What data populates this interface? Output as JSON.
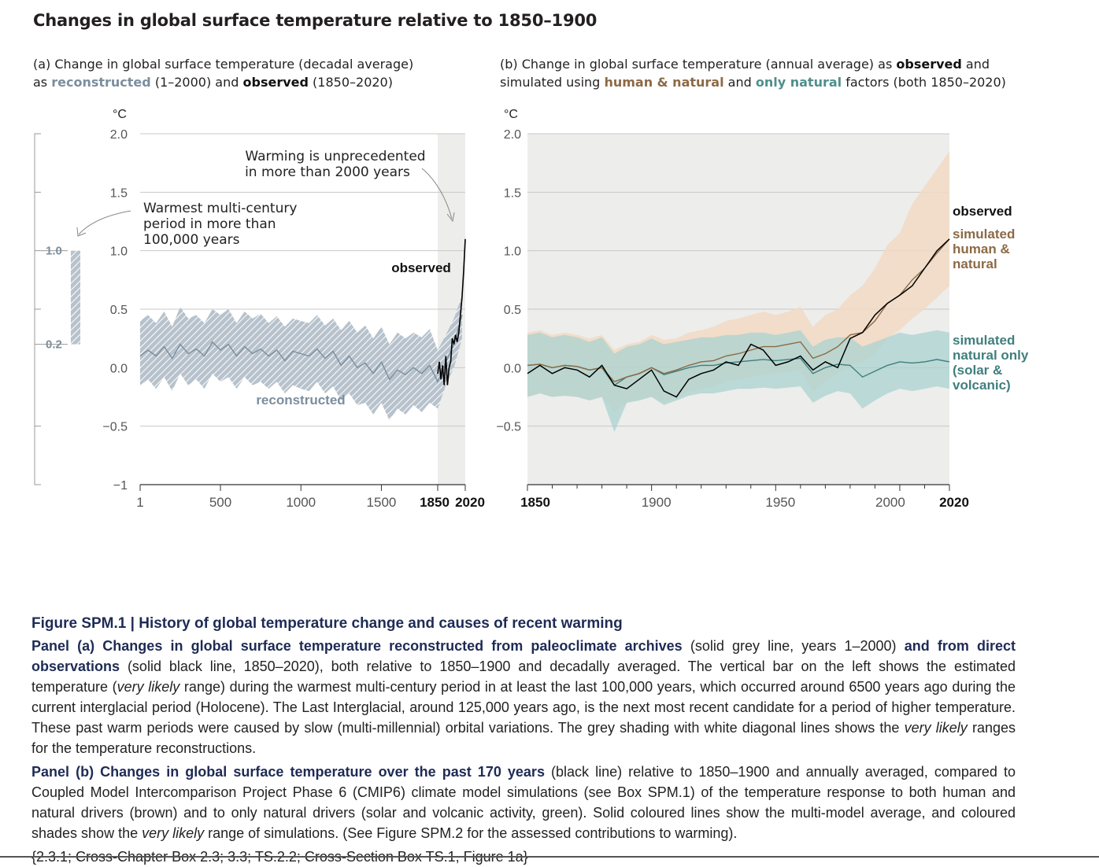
{
  "page": {
    "title": "Changes in global surface temperature relative to 1850–1900"
  },
  "panel_a_subtitle": {
    "line1": "(a) Change in global surface temperature (decadal average)",
    "as": "as",
    "reconstructed": "reconstructed",
    "mid": "(1–2000) and",
    "observed": "observed",
    "end": "(1850–2020)"
  },
  "panel_b_subtitle": {
    "line1_start": "(b) Change in global surface temperature (annual average) as",
    "observed": "observed",
    "and": "and",
    "line2_start": "simulated using",
    "human_natural": "human & natural",
    "and2": "and",
    "only_natural": "only natural",
    "end": "factors (both 1850–2020)"
  },
  "colors": {
    "reconstructed": "#7b8e9e",
    "reconstructed_band": "#b7c2cc",
    "observed": "#000000",
    "human_natural_line": "#8b6a45",
    "human_natural_band": "#f1d9c4",
    "natural_line": "#3f7f7c",
    "natural_band": "#a9d2d0",
    "shade": "#ededeb",
    "grid": "#c8c8c8"
  },
  "chart_data": [
    {
      "type": "line",
      "panel": "a",
      "ylabel": "°C",
      "ylim": [
        -1,
        2
      ],
      "yticks": [
        "2.0",
        "1.5",
        "1.0",
        "0.5",
        "0.0",
        "−0.5",
        "−1"
      ],
      "ytick_values": [
        2.0,
        1.5,
        1.0,
        0.5,
        0.0,
        -0.5,
        -1.0
      ],
      "xticks": [
        "1",
        "500",
        "1000",
        "1500",
        "1850",
        "2020"
      ],
      "xtick_values": [
        1,
        500,
        1000,
        1500,
        1850,
        2020
      ],
      "grid": true,
      "shaded_period": [
        1850,
        2020
      ],
      "series": [
        {
          "name": "reconstructed",
          "x": [
            1,
            50,
            100,
            150,
            200,
            250,
            300,
            350,
            400,
            450,
            500,
            550,
            600,
            650,
            700,
            750,
            800,
            850,
            900,
            950,
            1000,
            1050,
            1100,
            1150,
            1200,
            1250,
            1300,
            1350,
            1400,
            1450,
            1500,
            1550,
            1600,
            1650,
            1700,
            1750,
            1800,
            1850,
            1900,
            1950,
            2000
          ],
          "values": [
            0.1,
            0.15,
            0.1,
            0.18,
            0.08,
            0.2,
            0.12,
            0.16,
            0.1,
            0.22,
            0.15,
            0.2,
            0.1,
            0.18,
            0.12,
            0.16,
            0.1,
            0.15,
            0.06,
            0.14,
            0.12,
            0.1,
            0.16,
            0.08,
            0.14,
            0.02,
            0.1,
            0.0,
            0.04,
            -0.05,
            0.05,
            -0.1,
            -0.02,
            -0.06,
            0.0,
            -0.05,
            0.02,
            -0.12,
            0.05,
            0.2,
            0.45
          ],
          "lower": [
            -0.15,
            -0.1,
            -0.18,
            -0.08,
            -0.2,
            -0.05,
            -0.15,
            -0.1,
            -0.18,
            -0.05,
            -0.12,
            -0.08,
            -0.18,
            -0.08,
            -0.15,
            -0.12,
            -0.18,
            -0.12,
            -0.22,
            -0.15,
            -0.18,
            -0.2,
            -0.12,
            -0.22,
            -0.16,
            -0.28,
            -0.22,
            -0.32,
            -0.3,
            -0.4,
            -0.3,
            -0.45,
            -0.35,
            -0.4,
            -0.32,
            -0.38,
            -0.3,
            -0.35,
            -0.15,
            0.0,
            0.25
          ],
          "upper": [
            0.4,
            0.45,
            0.38,
            0.48,
            0.35,
            0.52,
            0.42,
            0.45,
            0.38,
            0.5,
            0.45,
            0.5,
            0.38,
            0.48,
            0.42,
            0.46,
            0.38,
            0.44,
            0.35,
            0.42,
            0.4,
            0.38,
            0.45,
            0.36,
            0.42,
            0.32,
            0.4,
            0.3,
            0.36,
            0.25,
            0.35,
            0.2,
            0.3,
            0.25,
            0.3,
            0.26,
            0.33,
            0.15,
            0.28,
            0.42,
            0.62
          ]
        },
        {
          "name": "observed",
          "x": [
            1850,
            1860,
            1870,
            1880,
            1890,
            1900,
            1910,
            1920,
            1930,
            1940,
            1950,
            1960,
            1970,
            1980,
            1990,
            2000,
            2010,
            2020
          ],
          "values": [
            -0.05,
            0.05,
            -0.1,
            0.02,
            -0.15,
            0.1,
            -0.15,
            0.0,
            0.05,
            0.25,
            0.2,
            0.28,
            0.22,
            0.3,
            0.45,
            0.6,
            0.82,
            1.1
          ]
        }
      ],
      "interval_bar": {
        "label_high": "1.0",
        "label_low": "0.2",
        "high": 1.0,
        "low": 0.2
      },
      "annotations": [
        {
          "id": "unprecedented",
          "text_line1": "Warming is unprecedented",
          "text_line2": "in more than 2000 years"
        },
        {
          "id": "warmest",
          "text_line1": "Warmest multi-century",
          "text_line2": "period in more than",
          "text_line3": "100,000 years"
        },
        {
          "id": "observed_label",
          "text": "observed"
        },
        {
          "id": "reconstructed_label",
          "text": "reconstructed"
        }
      ]
    },
    {
      "type": "line",
      "panel": "b",
      "ylabel": "°C",
      "ylim": [
        -1,
        2
      ],
      "yticks": [
        "2.0",
        "1.5",
        "1.0",
        "0.5",
        "0.0",
        "−0.5"
      ],
      "ytick_values": [
        2.0,
        1.5,
        1.0,
        0.5,
        0.0,
        -0.5
      ],
      "xticks": [
        "1850",
        "1900",
        "1950",
        "2000",
        "2020"
      ],
      "xtick_values": [
        1850,
        1900,
        1950,
        2000,
        2020
      ],
      "grid": true,
      "x": [
        1850,
        1855,
        1860,
        1865,
        1870,
        1875,
        1880,
        1885,
        1890,
        1895,
        1900,
        1905,
        1910,
        1915,
        1920,
        1925,
        1930,
        1935,
        1940,
        1945,
        1950,
        1955,
        1960,
        1965,
        1970,
        1975,
        1980,
        1985,
        1990,
        1995,
        2000,
        2005,
        2010,
        2015,
        2020
      ],
      "series": [
        {
          "name": "observed",
          "values": [
            -0.05,
            0.02,
            -0.05,
            0.0,
            -0.02,
            -0.08,
            0.02,
            -0.15,
            -0.18,
            -0.1,
            -0.02,
            -0.2,
            -0.25,
            -0.1,
            -0.05,
            -0.02,
            0.05,
            0.02,
            0.2,
            0.15,
            0.02,
            0.05,
            0.1,
            -0.02,
            0.05,
            0.0,
            0.25,
            0.3,
            0.45,
            0.55,
            0.62,
            0.7,
            0.85,
            1.0,
            1.1
          ]
        },
        {
          "name": "simulated human & natural",
          "values": [
            0.02,
            0.03,
            0.0,
            0.02,
            0.01,
            -0.02,
            0.0,
            -0.12,
            -0.08,
            -0.05,
            0.0,
            -0.05,
            -0.02,
            0.02,
            0.05,
            0.06,
            0.1,
            0.12,
            0.15,
            0.18,
            0.18,
            0.2,
            0.22,
            0.08,
            0.12,
            0.18,
            0.28,
            0.3,
            0.4,
            0.55,
            0.62,
            0.75,
            0.85,
            0.98,
            1.1
          ],
          "lower": [
            -0.25,
            -0.22,
            -0.25,
            -0.24,
            -0.25,
            -0.28,
            -0.25,
            -0.38,
            -0.3,
            -0.28,
            -0.25,
            -0.3,
            -0.25,
            -0.2,
            -0.18,
            -0.16,
            -0.12,
            -0.1,
            -0.08,
            -0.06,
            -0.05,
            -0.04,
            -0.02,
            -0.2,
            -0.12,
            -0.05,
            0.02,
            0.05,
            0.12,
            0.25,
            0.32,
            0.42,
            0.5,
            0.6,
            0.7
          ],
          "upper": [
            0.3,
            0.32,
            0.28,
            0.3,
            0.28,
            0.25,
            0.28,
            0.15,
            0.2,
            0.22,
            0.28,
            0.24,
            0.25,
            0.3,
            0.32,
            0.35,
            0.4,
            0.42,
            0.45,
            0.48,
            0.45,
            0.48,
            0.52,
            0.35,
            0.45,
            0.5,
            0.62,
            0.7,
            0.85,
            1.05,
            1.15,
            1.4,
            1.55,
            1.7,
            1.85
          ]
        },
        {
          "name": "simulated natural only (solar & volcanic)",
          "values": [
            0.02,
            0.03,
            0.0,
            0.02,
            0.01,
            -0.02,
            0.0,
            -0.15,
            -0.08,
            -0.05,
            0.0,
            -0.06,
            -0.03,
            0.0,
            0.02,
            0.02,
            0.04,
            0.05,
            0.06,
            0.07,
            0.06,
            0.07,
            0.08,
            -0.05,
            0.0,
            0.03,
            0.02,
            -0.08,
            -0.03,
            0.02,
            0.05,
            0.04,
            0.05,
            0.07,
            0.05
          ],
          "lower": [
            -0.25,
            -0.22,
            -0.25,
            -0.24,
            -0.25,
            -0.28,
            -0.25,
            -0.55,
            -0.3,
            -0.28,
            -0.25,
            -0.32,
            -0.28,
            -0.24,
            -0.22,
            -0.22,
            -0.2,
            -0.18,
            -0.18,
            -0.17,
            -0.18,
            -0.17,
            -0.16,
            -0.3,
            -0.24,
            -0.2,
            -0.22,
            -0.35,
            -0.28,
            -0.22,
            -0.18,
            -0.2,
            -0.18,
            -0.16,
            -0.18
          ],
          "upper": [
            0.28,
            0.3,
            0.26,
            0.28,
            0.26,
            0.22,
            0.26,
            0.12,
            0.18,
            0.2,
            0.25,
            0.2,
            0.22,
            0.24,
            0.26,
            0.26,
            0.28,
            0.28,
            0.3,
            0.3,
            0.28,
            0.3,
            0.32,
            0.18,
            0.24,
            0.26,
            0.26,
            0.18,
            0.22,
            0.26,
            0.3,
            0.28,
            0.3,
            0.32,
            0.3
          ]
        }
      ],
      "legend": {
        "observed": "observed",
        "human_line1": "simulated",
        "human_line2": "human &",
        "human_line3": "natural",
        "natural_line1": "simulated",
        "natural_line2": "natural only",
        "natural_line3": "(solar &",
        "natural_line4": "volcanic)"
      }
    }
  ],
  "caption": {
    "figure_head": "Figure SPM.1 | History of global temperature change and causes of recent warming",
    "panel_a_lead": "Panel (a) Changes in global surface temperature reconstructed from paleoclimate archives",
    "panel_a_t1": "(solid grey line, years 1–2000)",
    "panel_a_lead2": "and from direct observations",
    "panel_a_t2": "(solid black line, 1850–2020), both relative to 1850–1900 and decadally averaged. The vertical bar on the left shows the estimated temperature (",
    "panel_a_vl1": "very likely",
    "panel_a_t3": " range) during the warmest multi-century period in at least the last 100,000 years, which occurred around 6500 years ago during the current interglacial period (Holocene). The Last Interglacial, around 125,000 years ago, is the next most recent candidate for a period of higher temperature. These past warm periods were caused by slow (multi-millennial) orbital variations. The grey shading with white diagonal lines shows the ",
    "panel_a_vl2": "very likely",
    "panel_a_t4": " ranges for the temperature reconstructions.",
    "panel_b_lead": "Panel (b) Changes in global surface temperature over the past 170 years",
    "panel_b_t1": " (black line) relative to 1850–1900 and annually averaged, compared to Coupled Model Intercomparison Project Phase 6 (CMIP6) climate model simulations (see Box SPM.1) of the temperature response to both human and natural drivers (brown) and to only natural drivers (solar and volcanic activity, green). Solid coloured lines show the multi-model average, and coloured shades show the ",
    "panel_b_vl": "very likely",
    "panel_b_t2": " range of simulations. (See Figure SPM.2 for the assessed contributions to warming).",
    "refs": "{2.3.1; Cross-Chapter Box 2.3; 3.3; TS.2.2; Cross-Section Box TS.1, Figure 1a}"
  }
}
